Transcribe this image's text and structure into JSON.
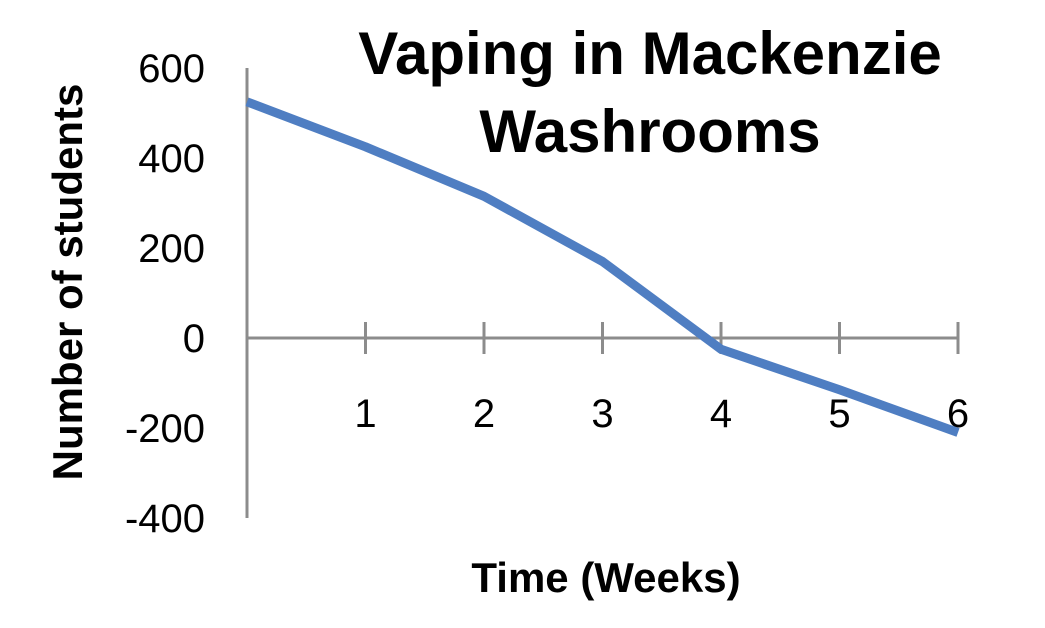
{
  "chart_data": {
    "type": "line",
    "title": "Vaping in Mackenzie Washrooms",
    "title_lines": [
      "Vaping in Mackenzie",
      "Washrooms"
    ],
    "xlabel": "Time (Weeks)",
    "ylabel": "Number of students",
    "x": [
      0,
      1,
      2,
      3,
      4,
      5,
      6
    ],
    "x_tick_labels": [
      "1",
      "2",
      "3",
      "4",
      "5",
      "6"
    ],
    "y_tick_labels": [
      "600",
      "400",
      "200",
      "0",
      "-200",
      "-400"
    ],
    "ylim": [
      -400,
      600
    ],
    "xlim": [
      0,
      6
    ],
    "grid": false,
    "legend": "none",
    "series": [
      {
        "values": [
          525,
          425,
          315,
          170,
          -25,
          -115,
          -210
        ],
        "color": "#4f7ec2"
      }
    ]
  }
}
